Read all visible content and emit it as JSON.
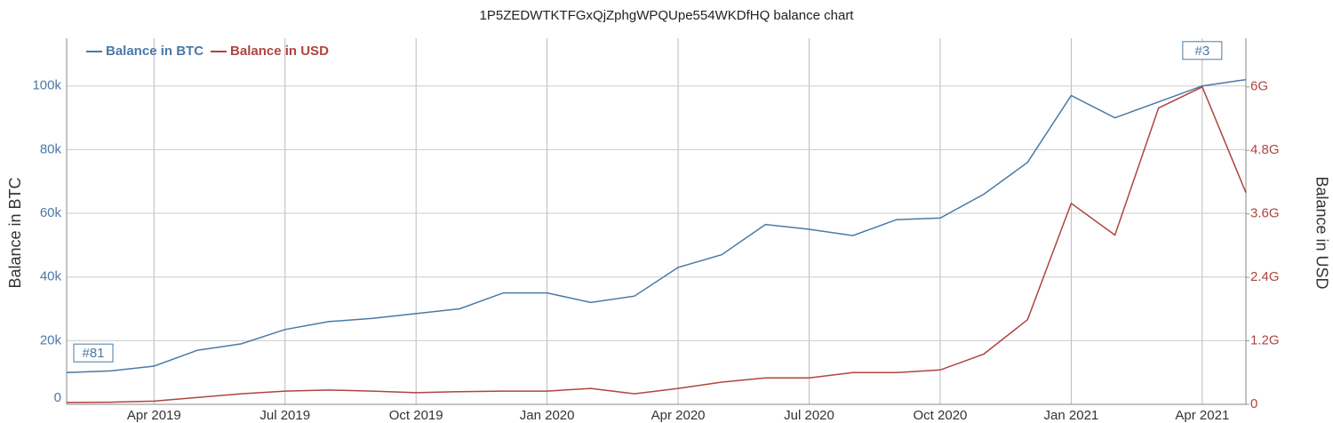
{
  "chart_data": {
    "type": "line",
    "title": "1P5ZEDWTKTFGxQjZphgWPQUpe554WKDfHQ balance chart",
    "y_label": "Balance in BTC",
    "y2_label": "Balance in USD",
    "legend": "top-left",
    "grid": true,
    "x": [
      "2019-02",
      "2019-03",
      "2019-04",
      "2019-05",
      "2019-06",
      "2019-07",
      "2019-08",
      "2019-09",
      "2019-10",
      "2019-11",
      "2019-12",
      "2020-01",
      "2020-02",
      "2020-03",
      "2020-04",
      "2020-05",
      "2020-06",
      "2020-07",
      "2020-08",
      "2020-09",
      "2020-10",
      "2020-11",
      "2020-12",
      "2021-01",
      "2021-02",
      "2021-03",
      "2021-04",
      "2021-05"
    ],
    "xlim": [
      "2019-02",
      "2021-05"
    ],
    "xticks": [
      {
        "value": "2019-04",
        "label": "Apr 2019"
      },
      {
        "value": "2019-07",
        "label": "Jul 2019"
      },
      {
        "value": "2019-10",
        "label": "Oct 2019"
      },
      {
        "value": "2020-01",
        "label": "Jan 2020"
      },
      {
        "value": "2020-04",
        "label": "Apr 2020"
      },
      {
        "value": "2020-07",
        "label": "Jul 2020"
      },
      {
        "value": "2020-10",
        "label": "Oct 2020"
      },
      {
        "value": "2021-01",
        "label": "Jan 2021"
      },
      {
        "value": "2021-04",
        "label": "Apr 2021"
      }
    ],
    "ylim": [
      0,
      115000
    ],
    "yticks": [
      0,
      {
        "value": 20000,
        "label": "20k"
      },
      {
        "value": 40000,
        "label": "40k"
      },
      {
        "value": 60000,
        "label": "60k"
      },
      {
        "value": 80000,
        "label": "80k"
      },
      {
        "value": 100000,
        "label": "100k"
      }
    ],
    "y2lim": [
      0,
      6920000000
    ],
    "y2ticks": [
      0,
      {
        "value": 1200000000,
        "label": "1.2G"
      },
      {
        "value": 2400000000,
        "label": "2.4G"
      },
      {
        "value": 3600000000,
        "label": "3.6G"
      },
      {
        "value": 4800000000,
        "label": "4.8G"
      },
      {
        "value": 6000000000,
        "label": "6G"
      }
    ],
    "series": [
      {
        "name": "Balance in BTC",
        "color": "#4a79a5",
        "values": [
          10000,
          10500,
          12000,
          17000,
          19000,
          23500,
          26000,
          27000,
          28500,
          30000,
          35000,
          35000,
          32000,
          34000,
          43000,
          47000,
          56500,
          55000,
          53000,
          58000,
          58500,
          66000,
          76000,
          97000,
          90000,
          95000,
          100000,
          102000
        ]
      },
      {
        "name": "Balance in USD",
        "color": "#b0443e",
        "axis": "y2",
        "values": [
          35000000,
          40000000,
          60000000,
          130000000,
          200000000,
          250000000,
          270000000,
          250000000,
          220000000,
          240000000,
          250000000,
          250000000,
          300000000,
          200000000,
          300000000,
          420000000,
          500000000,
          500000000,
          600000000,
          600000000,
          650000000,
          950000000,
          1600000000,
          3800000000,
          3200000000,
          5600000000,
          6000000000,
          4000000000
        ]
      }
    ],
    "annotations": [
      {
        "text": "#81",
        "x": "2019-02",
        "y": 10000
      },
      {
        "text": "#3",
        "x": "2021-04",
        "y": 105000
      }
    ]
  }
}
